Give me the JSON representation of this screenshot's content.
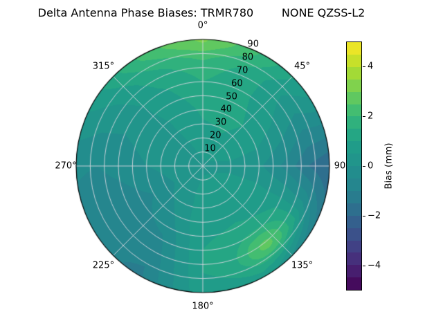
{
  "chart_data": {
    "type": "polar_contour",
    "title": "Delta Antenna Phase Biases: TRMR780        NONE QZSS-L2",
    "angular_unit": "degrees azimuth clockwise from top",
    "angular_ticks": [
      {
        "deg": 0,
        "label": "0°"
      },
      {
        "deg": 45,
        "label": "45°"
      },
      {
        "deg": 90,
        "label": "90"
      },
      {
        "deg": 135,
        "label": "135°"
      },
      {
        "deg": 180,
        "label": "180°"
      },
      {
        "deg": 225,
        "label": "225°"
      },
      {
        "deg": 270,
        "label": "270°"
      },
      {
        "deg": 315,
        "label": "315°"
      }
    ],
    "radial_ticks": [
      {
        "r": 10,
        "label": "10"
      },
      {
        "r": 20,
        "label": "20"
      },
      {
        "r": 30,
        "label": "30"
      },
      {
        "r": 40,
        "label": "40"
      },
      {
        "r": 50,
        "label": "50"
      },
      {
        "r": 60,
        "label": "60"
      },
      {
        "r": 70,
        "label": "70"
      },
      {
        "r": 80,
        "label": "80"
      },
      {
        "r": 90,
        "label": "90"
      }
    ],
    "radial_label_angle_deg": 22.5,
    "r_max": 90,
    "colorbar": {
      "label": "Bias (mm)",
      "vmin": -5,
      "vmax": 5,
      "level_step": 0.5,
      "tick_values": [
        4,
        2,
        0,
        -2,
        -4
      ],
      "tick_labels": [
        "4",
        "2",
        "0",
        "−2",
        "−4"
      ]
    },
    "colormap_name": "viridis",
    "colormap": [
      {
        "pos": 0.0,
        "color": "#440154"
      },
      {
        "pos": 0.1,
        "color": "#482878"
      },
      {
        "pos": 0.2,
        "color": "#3e4989"
      },
      {
        "pos": 0.3,
        "color": "#31688e"
      },
      {
        "pos": 0.4,
        "color": "#26828e"
      },
      {
        "pos": 0.5,
        "color": "#21918c"
      },
      {
        "pos": 0.6,
        "color": "#1fa088"
      },
      {
        "pos": 0.7,
        "color": "#35b779"
      },
      {
        "pos": 0.8,
        "color": "#6ece58"
      },
      {
        "pos": 0.9,
        "color": "#b5de2b"
      },
      {
        "pos": 1.0,
        "color": "#fde725"
      }
    ],
    "field": {
      "az_step_deg": 30,
      "r_nodes": [
        0,
        20,
        40,
        60,
        75,
        90
      ],
      "bias_mm": [
        [
          0.4,
          0.8,
          1.1,
          1.5,
          1.9,
          2.4
        ],
        [
          0.4,
          0.9,
          1.2,
          1.1,
          1.2,
          1.5
        ],
        [
          0.4,
          0.7,
          0.8,
          0.4,
          0.0,
          0.3
        ],
        [
          0.4,
          0.4,
          0.1,
          -0.7,
          -1.5,
          -2.0
        ],
        [
          0.4,
          0.6,
          0.8,
          0.9,
          0.7,
          -1.0
        ],
        [
          0.4,
          0.7,
          0.9,
          1.2,
          1.1,
          0.7
        ],
        [
          0.4,
          0.7,
          0.9,
          1.0,
          1.0,
          0.9
        ],
        [
          0.4,
          0.3,
          0.0,
          -0.6,
          -0.9,
          -1.1
        ],
        [
          0.4,
          0.1,
          -0.5,
          -0.9,
          -1.0,
          -0.8
        ],
        [
          0.4,
          0.2,
          0.0,
          -0.3,
          -0.5,
          -0.4
        ],
        [
          0.4,
          0.3,
          0.2,
          0.1,
          0.3,
          0.6
        ],
        [
          0.4,
          0.5,
          0.6,
          0.9,
          1.3,
          1.7
        ]
      ],
      "bumps": [
        {
          "az": 140,
          "r": 72,
          "amp": 1.6,
          "sigma_az": 12,
          "sigma_r": 8
        },
        {
          "az": 358,
          "r": 89,
          "amp": 0.7,
          "sigma_az": 28,
          "sigma_r": 7
        }
      ]
    },
    "grid_color": "#d8d8e0",
    "outline_color": "#000000"
  }
}
